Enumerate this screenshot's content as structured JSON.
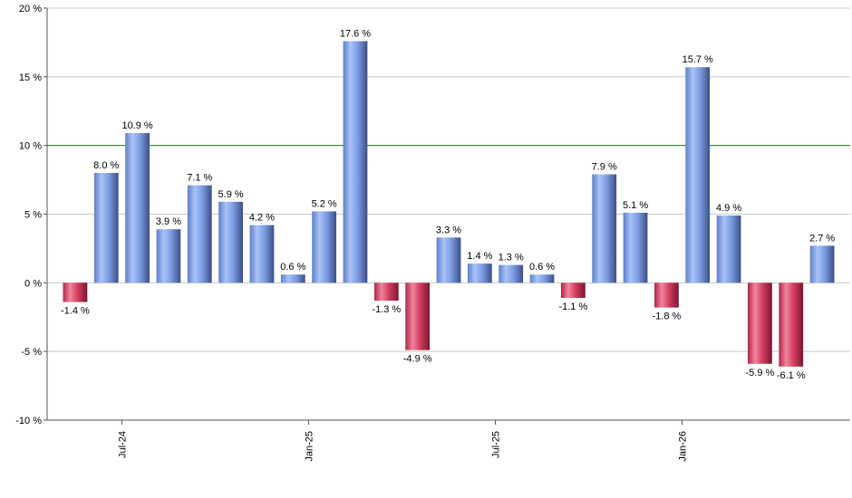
{
  "chart_data": {
    "type": "bar",
    "title": "",
    "xlabel": "",
    "ylabel": "",
    "ylim": [
      -10,
      20
    ],
    "y_ticks": [
      {
        "value": -10,
        "label": "-10 %"
      },
      {
        "value": -5,
        "label": "-5 %"
      },
      {
        "value": 0,
        "label": "0 %"
      },
      {
        "value": 5,
        "label": "5 %"
      },
      {
        "value": 10,
        "label": "10 %"
      },
      {
        "value": 15,
        "label": "15 %"
      },
      {
        "value": 20,
        "label": "20 %"
      }
    ],
    "x_ticks": [
      {
        "after_index": 1,
        "label": "Jul-24"
      },
      {
        "after_index": 7,
        "label": "Jan-25"
      },
      {
        "after_index": 13,
        "label": "Jul-25"
      },
      {
        "after_index": 19,
        "label": "Jan-26"
      }
    ],
    "reference_line": {
      "value": 10,
      "color": "#2e7d1e"
    },
    "grid": true,
    "colors": {
      "positive": "#7a9be6",
      "negative": "#d03a5c"
    },
    "values": [
      -1.4,
      8.0,
      10.9,
      3.9,
      7.1,
      5.9,
      4.2,
      0.6,
      5.2,
      17.6,
      -1.3,
      -4.9,
      3.3,
      1.4,
      1.3,
      0.6,
      -1.1,
      7.9,
      5.1,
      -1.8,
      15.7,
      4.9,
      -5.9,
      -6.1,
      2.7
    ],
    "labels": [
      "-1.4 %",
      "8.0 %",
      "10.9 %",
      "3.9 %",
      "7.1 %",
      "5.9 %",
      "4.2 %",
      "0.6 %",
      "5.2 %",
      "17.6 %",
      "-1.3 %",
      "-4.9 %",
      "3.3 %",
      "1.4 %",
      "1.3 %",
      "0.6 %",
      "-1.1 %",
      "7.9 %",
      "5.1 %",
      "-1.8 %",
      "15.7 %",
      "4.9 %",
      "-5.9 %",
      "-6.1 %",
      "2.7 %"
    ]
  }
}
